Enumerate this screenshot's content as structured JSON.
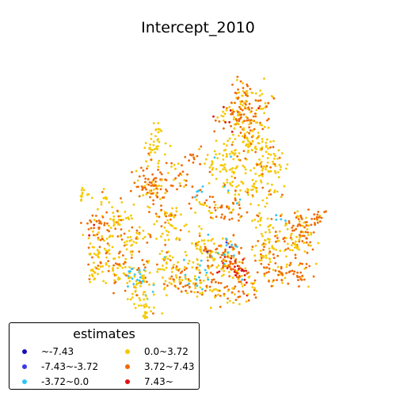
{
  "title": "Intercept_2010",
  "legend": {
    "title": "estimates",
    "items": [
      {
        "label": "~-7.43",
        "color": "#1a0fb3"
      },
      {
        "label": "-7.43~-3.72",
        "color": "#3a3ae8"
      },
      {
        "label": "-3.72~0.0",
        "color": "#2ec7f0"
      },
      {
        "label": "0.0~3.72",
        "color": "#f5c800"
      },
      {
        "label": "3.72~7.43",
        "color": "#f06a00"
      },
      {
        "label": "7.43~",
        "color": "#e01010"
      }
    ]
  }
}
